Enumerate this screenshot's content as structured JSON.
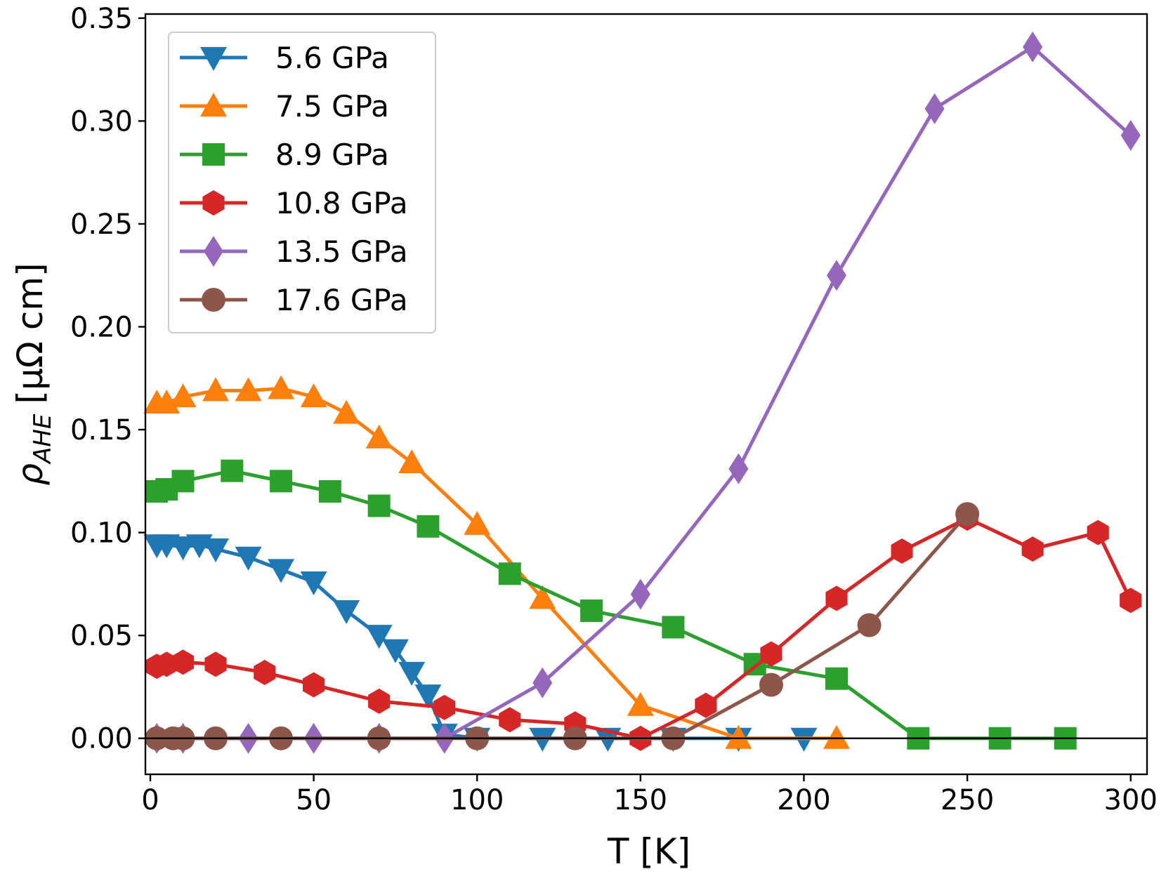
{
  "chart_data": {
    "type": "line",
    "title": "",
    "xlabel": "T [K]",
    "ylabel_symbol": "ρ",
    "ylabel_subscript": "AHE",
    "ylabel_unit": "[μΩ cm]",
    "xlim": [
      -1.5,
      305
    ],
    "ylim": [
      -0.0175,
      0.352
    ],
    "xticks": [
      0,
      50,
      100,
      150,
      200,
      250,
      300
    ],
    "xtick_labels": [
      "0",
      "50",
      "100",
      "150",
      "200",
      "250",
      "300"
    ],
    "yticks": [
      0.0,
      0.05,
      0.1,
      0.15,
      0.2,
      0.25,
      0.3,
      0.35
    ],
    "ytick_labels": [
      "0.00",
      "0.05",
      "0.10",
      "0.15",
      "0.20",
      "0.25",
      "0.30",
      "0.35"
    ],
    "grid": false,
    "zero_line": true,
    "legend_position": "top-left",
    "series": [
      {
        "name": "5.6 GPa",
        "color": "#1f77b4",
        "marker": "triangle-down",
        "x": [
          2,
          5,
          10,
          15,
          20,
          30,
          40,
          50,
          60,
          70,
          75,
          80,
          85,
          90,
          100,
          120,
          140,
          160,
          180,
          200
        ],
        "y": [
          0.094,
          0.094,
          0.093,
          0.094,
          0.092,
          0.088,
          0.082,
          0.076,
          0.062,
          0.05,
          0.043,
          0.032,
          0.021,
          0.002,
          0.0,
          0.0,
          0.0,
          0.0,
          0.0,
          0.0
        ]
      },
      {
        "name": "7.5 GPa",
        "color": "#ff7f0e",
        "marker": "triangle-up",
        "x": [
          2,
          5,
          10,
          20,
          30,
          40,
          50,
          60,
          70,
          80,
          100,
          120,
          150,
          180,
          210
        ],
        "y": [
          0.163,
          0.163,
          0.166,
          0.169,
          0.169,
          0.17,
          0.166,
          0.158,
          0.146,
          0.134,
          0.104,
          0.068,
          0.016,
          0.0,
          0.0
        ]
      },
      {
        "name": "8.9 GPa",
        "color": "#2ca02c",
        "marker": "square",
        "x": [
          2,
          5,
          10,
          25,
          40,
          55,
          70,
          85,
          110,
          135,
          160,
          185,
          210,
          235,
          260,
          280
        ],
        "y": [
          0.12,
          0.121,
          0.125,
          0.13,
          0.125,
          0.12,
          0.113,
          0.103,
          0.08,
          0.062,
          0.054,
          0.036,
          0.029,
          0.0,
          0.0,
          0.0
        ]
      },
      {
        "name": "10.8 GPa",
        "color": "#d62728",
        "marker": "hexagon",
        "x": [
          2,
          5,
          10,
          20,
          35,
          50,
          70,
          90,
          110,
          130,
          150,
          170,
          190,
          210,
          230,
          250,
          270,
          290,
          300
        ],
        "y": [
          0.035,
          0.036,
          0.037,
          0.036,
          0.032,
          0.026,
          0.018,
          0.015,
          0.009,
          0.007,
          0.0,
          0.016,
          0.041,
          0.068,
          0.091,
          0.107,
          0.092,
          0.1,
          0.067
        ]
      },
      {
        "name": "13.5 GPa",
        "color": "#9467bd",
        "marker": "diamond",
        "x": [
          2,
          10,
          30,
          50,
          70,
          90,
          120,
          150,
          180,
          210,
          240,
          270,
          300
        ],
        "y": [
          0.0,
          0.0,
          0.0,
          0.0,
          0.0,
          0.0,
          0.027,
          0.07,
          0.131,
          0.225,
          0.306,
          0.336,
          0.293
        ]
      },
      {
        "name": "17.6 GPa",
        "color": "#8c564b",
        "marker": "circle",
        "x": [
          2,
          7,
          10,
          20,
          40,
          70,
          100,
          130,
          160,
          190,
          220,
          250
        ],
        "y": [
          0.0,
          0.0,
          0.0,
          0.0,
          0.0,
          0.0,
          0.0,
          0.0,
          0.0,
          0.026,
          0.055,
          0.109
        ]
      }
    ]
  }
}
